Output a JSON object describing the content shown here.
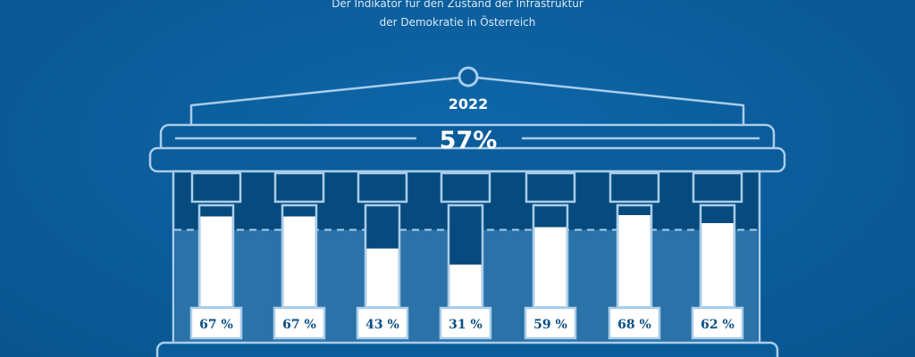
{
  "header": {
    "subtitle_line1": "Der Indikator für den Zustand der Infrastruktur",
    "subtitle_line2": "der Demokratie in Österreich"
  },
  "colors": {
    "background": "#0b5c9a",
    "outline": "#a9cdea",
    "column_dark": "#064a7e",
    "column_fill": "#ffffff",
    "lower_band": "#2a72a8",
    "label_text": "#0b4f86"
  },
  "chart_data": {
    "type": "bar",
    "title": "",
    "year": "2022",
    "overall": "57%",
    "categories": [
      "",
      "",
      "",
      "",
      "",
      "",
      ""
    ],
    "values": [
      67,
      67,
      43,
      31,
      59,
      68,
      62
    ],
    "value_labels": [
      "67 %",
      "67 %",
      "43 %",
      "31 %",
      "59 %",
      "68 %",
      "62 %"
    ],
    "ylim": [
      0,
      100
    ],
    "reference_line": 57,
    "grid": false
  }
}
